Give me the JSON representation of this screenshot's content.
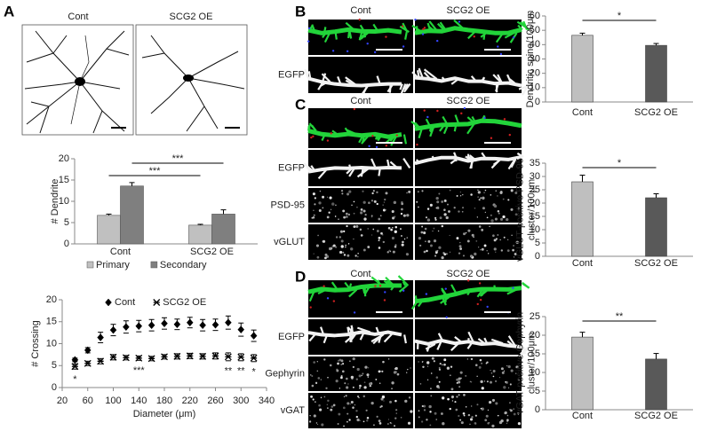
{
  "panel_a": {
    "label": "A",
    "headers": [
      "Cont",
      "SCG2 OE"
    ]
  },
  "panel_b": {
    "label": "B",
    "headers": [
      "Cont",
      "SCG2 OE"
    ],
    "channels": [
      {
        "name": "EGFP",
        "color": "#1aa84a"
      }
    ]
  },
  "panel_c": {
    "label": "C",
    "headers": [
      "Cont",
      "SCG2 OE"
    ],
    "channels": [
      {
        "name": "EGFP",
        "color": "#1aa84a"
      },
      {
        "name": "PSD-95",
        "color": "#e3262b"
      },
      {
        "name": "vGLUT",
        "color": "#1f7fc1"
      }
    ]
  },
  "panel_d": {
    "label": "D",
    "headers": [
      "Cont",
      "SCG2 OE"
    ],
    "channels": [
      {
        "name": "EGFP",
        "color": "#1aa84a"
      },
      {
        "name": "Gephyrin",
        "color": "#e3262b"
      },
      {
        "name": "vGAT",
        "color": "#1f7fc1"
      }
    ]
  },
  "chart_data": [
    {
      "type": "bar",
      "ylabel": "# Dendrite",
      "categories": [
        "Cont",
        "SCG2 OE"
      ],
      "series": [
        {
          "name": "Primary",
          "color": "#c0c0c0",
          "values": [
            6.7,
            4.4
          ],
          "errors": [
            0.3,
            0.2
          ]
        },
        {
          "name": "Secondary",
          "color": "#7f7f7f",
          "values": [
            13.6,
            7.0
          ],
          "errors": [
            0.8,
            1.0
          ]
        }
      ],
      "ylim": [
        0,
        20
      ],
      "yticks": [
        0,
        5,
        10,
        15,
        20
      ],
      "significance": [
        "***",
        "***"
      ],
      "legend": "bottom"
    },
    {
      "type": "scatter",
      "xlabel": "Diameter (μm)",
      "ylabel": "# Crossing",
      "x": [
        40,
        60,
        80,
        100,
        120,
        140,
        160,
        180,
        200,
        220,
        240,
        260,
        280,
        300,
        320
      ],
      "series": [
        {
          "name": "Cont",
          "color": "#000000",
          "marker": "diamond",
          "values": [
            6.3,
            8.5,
            11.4,
            13.1,
            13.8,
            14.0,
            14.2,
            14.6,
            14.4,
            14.8,
            14.2,
            14.3,
            14.8,
            13.2,
            11.8
          ],
          "errors": [
            0.4,
            0.6,
            1.2,
            1.3,
            1.4,
            1.3,
            1.3,
            1.3,
            1.2,
            1.2,
            1.3,
            1.3,
            1.5,
            1.5,
            1.3
          ]
        },
        {
          "name": "SCG2 OE",
          "color": "#000000",
          "marker": "star",
          "values": [
            4.8,
            5.5,
            6.0,
            6.9,
            6.8,
            6.7,
            6.6,
            7.0,
            7.1,
            7.2,
            7.1,
            7.2,
            7.0,
            6.9,
            6.7
          ],
          "errors": [
            0.6,
            0.5,
            0.6,
            0.6,
            0.5,
            0.5,
            0.5,
            0.5,
            0.6,
            0.6,
            0.6,
            0.7,
            0.9,
            0.8,
            0.8
          ]
        }
      ],
      "xlim": [
        20,
        340
      ],
      "xticks": [
        20,
        60,
        100,
        140,
        180,
        220,
        260,
        300,
        340
      ],
      "ylim": [
        0,
        20
      ],
      "yticks": [
        0,
        5,
        10,
        15,
        20
      ],
      "annotations": [
        {
          "text": "*",
          "x": 40
        },
        {
          "text": "***",
          "x": 140
        },
        {
          "text": "**",
          "x": 280
        },
        {
          "text": "**",
          "x": 300
        },
        {
          "text": "*",
          "x": 320
        }
      ],
      "legend": "top"
    },
    {
      "type": "bar",
      "ylabel": [
        "Dendritic spine/100μm"
      ],
      "categories": [
        "Cont",
        "SCG2 OE"
      ],
      "values": [
        46.5,
        39.5
      ],
      "errors": [
        1.5,
        1.3
      ],
      "colors": [
        "#bfbfbf",
        "#595959"
      ],
      "ylim": [
        0,
        60
      ],
      "yticks": [
        0,
        10,
        20,
        30,
        40,
        50,
        60
      ],
      "significance": [
        "*"
      ]
    },
    {
      "type": "bar",
      "ylabel": [
        "vGLUT-positive PSD-95",
        "cluster/100μm"
      ],
      "categories": [
        "Cont",
        "SCG2 OE"
      ],
      "values": [
        28,
        22
      ],
      "errors": [
        2.5,
        1.5
      ],
      "colors": [
        "#bfbfbf",
        "#595959"
      ],
      "ylim": [
        0,
        35
      ],
      "yticks": [
        0,
        5,
        10,
        15,
        20,
        25,
        30,
        35
      ],
      "significance": [
        "*"
      ]
    },
    {
      "type": "bar",
      "ylabel": [
        "vGAT-positive Gephyrin",
        "cluster/100μm"
      ],
      "categories": [
        "Cont",
        "SCG2 OE"
      ],
      "values": [
        19.5,
        13.6
      ],
      "errors": [
        1.3,
        1.5
      ],
      "colors": [
        "#bfbfbf",
        "#595959"
      ],
      "ylim": [
        0,
        25
      ],
      "yticks": [
        0,
        5,
        10,
        15,
        20,
        25
      ],
      "significance": [
        "**"
      ]
    }
  ]
}
